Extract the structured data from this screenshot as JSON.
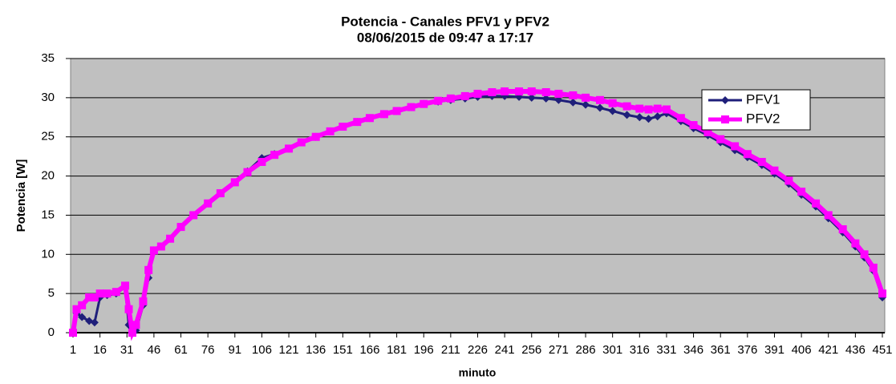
{
  "chart_data": {
    "type": "line",
    "title": "Potencia - Canales PFV1 y PFV2",
    "subtitle": "08/06/2015 de 09:47 a 17:17",
    "x_label": "minuto",
    "y_label": "Potencia [W]",
    "x": [
      1,
      3,
      6,
      10,
      13,
      16,
      20,
      25,
      30,
      32,
      34,
      36,
      40,
      43,
      46,
      50,
      55,
      61,
      68,
      76,
      83,
      91,
      98,
      106,
      113,
      121,
      128,
      136,
      144,
      151,
      159,
      166,
      174,
      181,
      189,
      196,
      204,
      211,
      219,
      226,
      234,
      241,
      249,
      256,
      264,
      271,
      279,
      286,
      294,
      301,
      309,
      316,
      321,
      326,
      331,
      339,
      346,
      354,
      361,
      369,
      376,
      384,
      391,
      399,
      406,
      414,
      421,
      429,
      436,
      441,
      446,
      451
    ],
    "series": [
      {
        "name": "PFV1",
        "color": "#1f1f7a",
        "values": [
          0,
          2.5,
          2,
          1.5,
          1.3,
          4.5,
          4.8,
          5,
          5.8,
          1,
          0.5,
          0.3,
          3.5,
          7,
          10.5,
          11,
          12,
          13.5,
          15,
          16.5,
          17.8,
          19.2,
          20.6,
          22.3,
          22.8,
          23.5,
          24.3,
          25,
          25.7,
          26.3,
          26.9,
          27.4,
          27.9,
          28.3,
          28.8,
          29.2,
          29.5,
          29.7,
          29.9,
          30.1,
          30.2,
          30.2,
          30.1,
          30,
          29.9,
          29.7,
          29.4,
          29.1,
          28.7,
          28.3,
          27.8,
          27.5,
          27.3,
          27.6,
          28,
          27,
          26.1,
          25.2,
          24.3,
          23.3,
          22.4,
          21.4,
          20.3,
          19,
          17.6,
          16.1,
          14.6,
          12.8,
          11,
          9.6,
          7.9,
          4.5
        ]
      },
      {
        "name": "PFV2",
        "color": "#ff00ff",
        "values": [
          0,
          3,
          3.5,
          4.5,
          4.5,
          5,
          5,
          5.2,
          6,
          3,
          0,
          1,
          4,
          8,
          10.5,
          11,
          12,
          13.5,
          15,
          16.5,
          17.8,
          19.2,
          20.5,
          21.8,
          22.7,
          23.5,
          24.3,
          25,
          25.7,
          26.3,
          26.9,
          27.4,
          27.9,
          28.3,
          28.8,
          29.2,
          29.6,
          29.9,
          30.2,
          30.5,
          30.7,
          30.8,
          30.8,
          30.8,
          30.7,
          30.5,
          30.3,
          30,
          29.7,
          29.3,
          28.9,
          28.6,
          28.5,
          28.6,
          28.5,
          27.4,
          26.5,
          25.6,
          24.7,
          23.8,
          22.8,
          21.8,
          20.7,
          19.4,
          18,
          16.5,
          15,
          13.2,
          11.4,
          10,
          8.3,
          5
        ]
      }
    ],
    "xlim": [
      1,
      451
    ],
    "xticks": [
      1,
      16,
      31,
      46,
      61,
      76,
      91,
      106,
      121,
      136,
      151,
      166,
      181,
      196,
      211,
      226,
      241,
      256,
      271,
      286,
      301,
      316,
      331,
      346,
      361,
      376,
      391,
      406,
      421,
      436,
      451
    ],
    "ylim": [
      0,
      35
    ],
    "yticks": [
      0,
      5,
      10,
      15,
      20,
      25,
      30,
      35
    ],
    "grid": true,
    "legend": "upper right"
  }
}
